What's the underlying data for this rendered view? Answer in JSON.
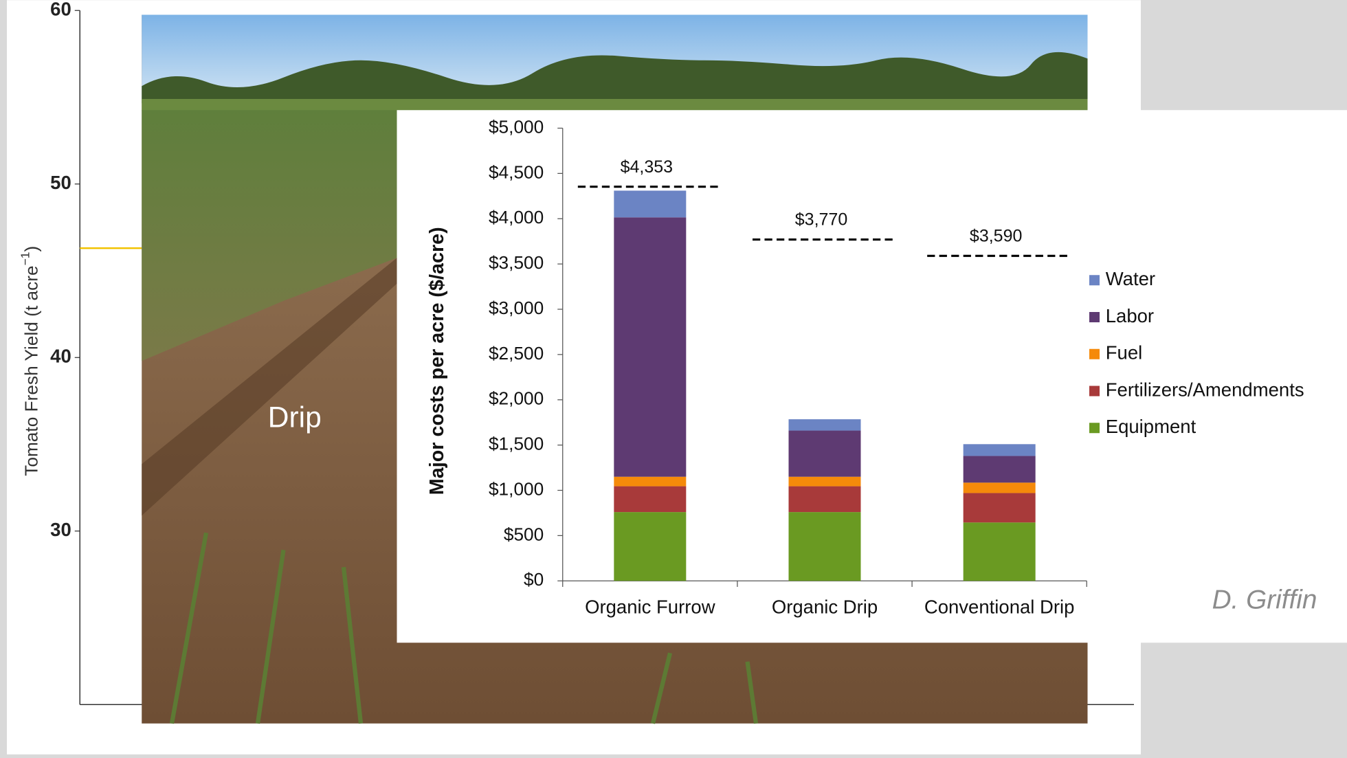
{
  "chart_data": [
    {
      "type": "axis-only",
      "ylabel": "Tomato Fresh Yield (t acre",
      "ylabel_superscript": "−1",
      "ylabel_end": ")",
      "ylim": [
        20,
        60
      ],
      "yticks": [
        30,
        40,
        50,
        60
      ],
      "reference_lines": [
        {
          "value": 46.3,
          "color": "#f2c200"
        }
      ]
    },
    {
      "type": "stacked-bar",
      "ylabel": "Major costs per acre ($/acre)",
      "categories": [
        "Organic Furrow",
        "Organic Drip",
        "Conventional Drip"
      ],
      "series": [
        {
          "name": "Equipment",
          "color": "#6a9a22",
          "values": [
            760,
            760,
            645
          ]
        },
        {
          "name": "Fertilizers/Amendments",
          "color": "#a83a3a",
          "values": [
            285,
            285,
            325
          ]
        },
        {
          "name": "Fuel",
          "color": "#f58a0a",
          "values": [
            105,
            105,
            115
          ]
        },
        {
          "name": "Labor",
          "color": "#5e3a72",
          "values": [
            2865,
            510,
            295
          ]
        },
        {
          "name": "Water",
          "color": "#6b84c4",
          "values": [
            295,
            125,
            130
          ]
        }
      ],
      "totals": {
        "values": [
          4353,
          3770,
          3590
        ],
        "value_labels": [
          "$4,353",
          "$3,770",
          "$3,590"
        ]
      },
      "ylim": [
        0,
        5000
      ],
      "yticks": [
        {
          "value": 0,
          "label": "$0"
        },
        {
          "value": 500,
          "label": "$500"
        },
        {
          "value": 1000,
          "label": "$1,000"
        },
        {
          "value": 1500,
          "label": "$1,500"
        },
        {
          "value": 2000,
          "label": "$2,000"
        },
        {
          "value": 2500,
          "label": "$2,500"
        },
        {
          "value": 3000,
          "label": "$3,000"
        },
        {
          "value": 3500,
          "label": "$3,500"
        },
        {
          "value": 4000,
          "label": "$4,000"
        },
        {
          "value": 4500,
          "label": "$4,500"
        },
        {
          "value": 5000,
          "label": "$5,000"
        }
      ],
      "legend": "right"
    }
  ],
  "photo_label": "Drip",
  "credit": "D. Griffin"
}
